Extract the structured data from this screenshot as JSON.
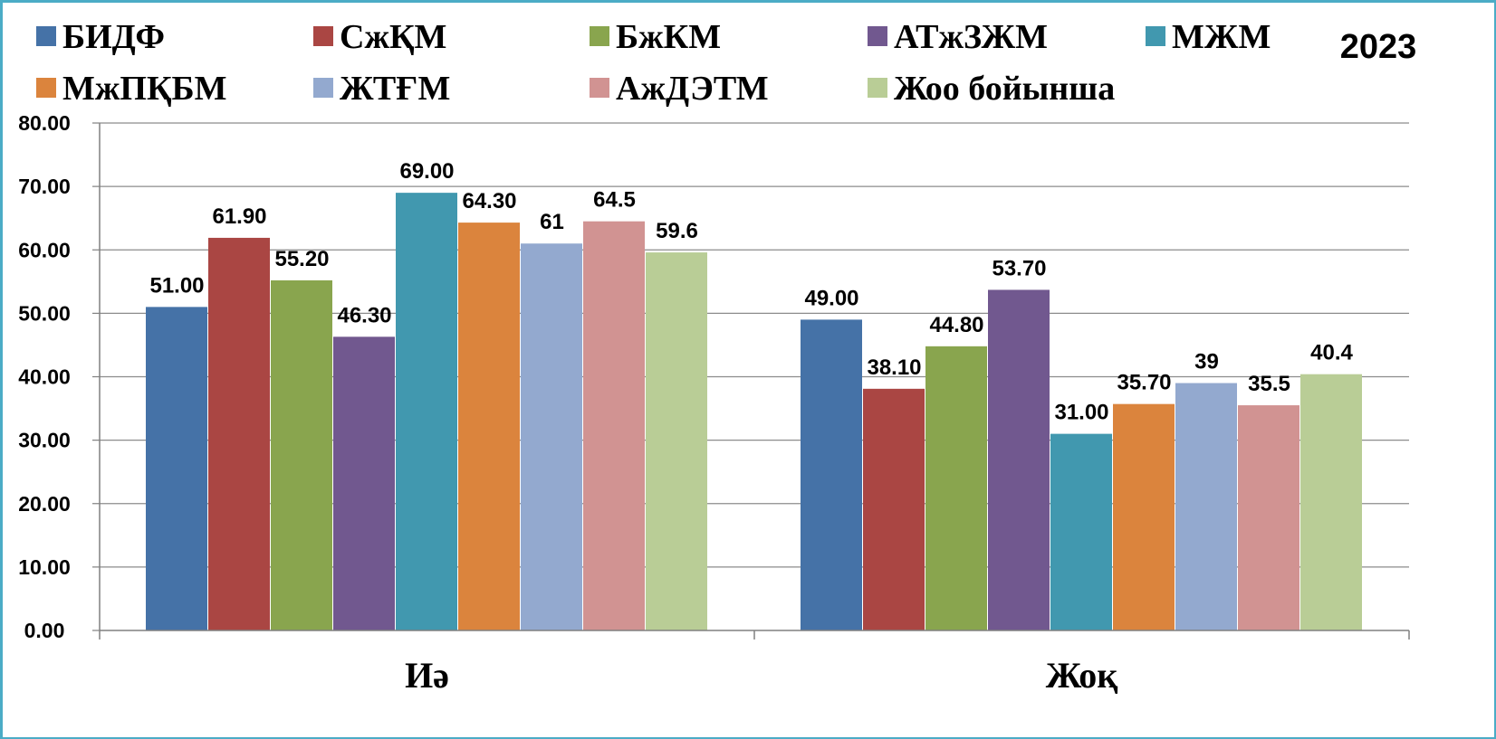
{
  "chart_data": {
    "type": "bar",
    "title": "",
    "annotation": "2023",
    "xlabel": "",
    "ylabel": "",
    "categories": [
      "Иә",
      "Жоқ"
    ],
    "ylim": [
      0,
      80
    ],
    "yticks": [
      "0.00",
      "10.00",
      "20.00",
      "30.00",
      "40.00",
      "50.00",
      "60.00",
      "70.00",
      "80.00"
    ],
    "grid": true,
    "legend_position": "top",
    "series": [
      {
        "name": "БИДФ",
        "color": "#4572a7",
        "values": [
          51.0,
          49.0
        ],
        "labels": [
          "51.00",
          "49.00"
        ]
      },
      {
        "name": "СжҚМ",
        "color": "#aa4643",
        "values": [
          61.9,
          38.1
        ],
        "labels": [
          "61.90",
          "38.10"
        ]
      },
      {
        "name": "БжКМ",
        "color": "#89a54e",
        "values": [
          55.2,
          44.8
        ],
        "labels": [
          "55.20",
          "44.80"
        ]
      },
      {
        "name": "АТжЗЖМ",
        "color": "#71588f",
        "values": [
          46.3,
          53.7
        ],
        "labels": [
          "46.30",
          "53.70"
        ]
      },
      {
        "name": "МЖМ",
        "color": "#4198af",
        "values": [
          69.0,
          31.0
        ],
        "labels": [
          "69.00",
          "31.00"
        ]
      },
      {
        "name": "МжПҚБМ",
        "color": "#db843d",
        "values": [
          64.3,
          35.7
        ],
        "labels": [
          "64.30",
          "35.70"
        ]
      },
      {
        "name": "ЖТҒМ",
        "color": "#93a9cf",
        "values": [
          61,
          39
        ],
        "labels": [
          "61",
          "39"
        ]
      },
      {
        "name": "АжДЭТМ",
        "color": "#d19392",
        "values": [
          64.5,
          35.5
        ],
        "labels": [
          "64.5",
          "35.5"
        ]
      },
      {
        "name": "Жоо бойынша",
        "color": "#b9cd96",
        "values": [
          59.6,
          40.4
        ],
        "labels": [
          "59.6",
          "40.4"
        ]
      }
    ]
  }
}
